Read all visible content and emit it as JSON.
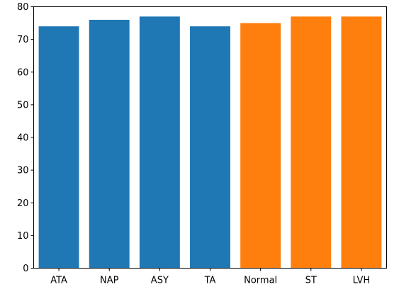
{
  "chart_data": {
    "type": "bar",
    "categories": [
      "ATA",
      "NAP",
      "ASY",
      "TA",
      "Normal",
      "ST",
      "LVH"
    ],
    "values": [
      74,
      76,
      77,
      74,
      75,
      77,
      77
    ],
    "bar_colors": [
      "#1f77b4",
      "#1f77b4",
      "#1f77b4",
      "#1f77b4",
      "#ff7f0e",
      "#ff7f0e",
      "#ff7f0e"
    ],
    "title": "",
    "xlabel": "",
    "ylabel": "",
    "ylim": [
      0,
      80
    ],
    "yticks": [
      0,
      10,
      20,
      30,
      40,
      50,
      60,
      70,
      80
    ],
    "grid": false
  }
}
